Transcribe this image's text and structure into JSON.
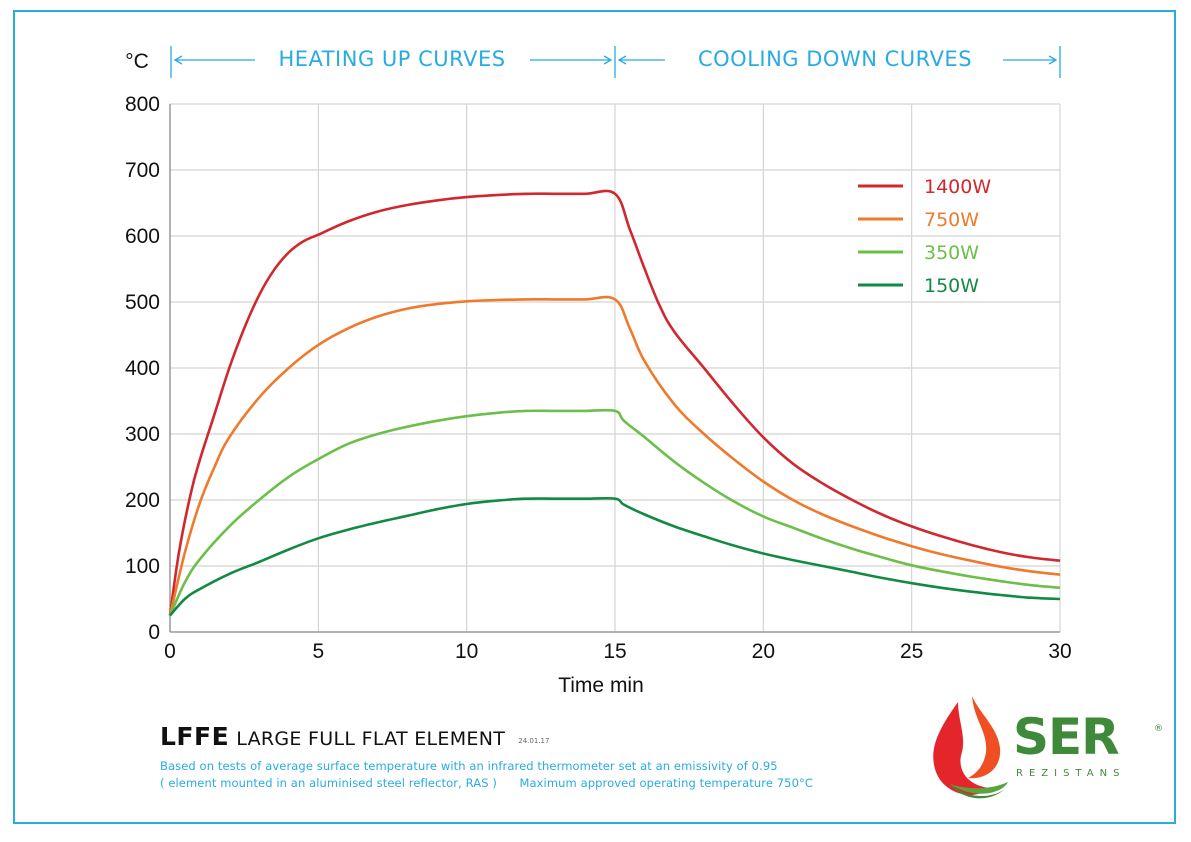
{
  "header": {
    "unit": "°C",
    "heating_label": "HEATING UP CURVES",
    "cooling_label": "COOLING DOWN CURVES"
  },
  "chart_data": {
    "type": "line",
    "xlabel": "Time min",
    "ylabel": "°C",
    "xlim": [
      0,
      30
    ],
    "ylim": [
      0,
      800
    ],
    "xticks": [
      0,
      5,
      10,
      15,
      20,
      25,
      30
    ],
    "yticks": [
      0,
      100,
      200,
      300,
      400,
      500,
      600,
      700,
      800
    ],
    "grid": true,
    "legend_position": "top-right",
    "series": [
      {
        "name": "1400W",
        "color": "#d0282e",
        "points": [
          [
            0,
            25
          ],
          [
            0.3,
            120
          ],
          [
            0.7,
            210
          ],
          [
            1,
            260
          ],
          [
            1.5,
            330
          ],
          [
            2,
            400
          ],
          [
            2.5,
            460
          ],
          [
            3,
            510
          ],
          [
            3.5,
            548
          ],
          [
            4,
            575
          ],
          [
            4.5,
            592
          ],
          [
            5,
            602
          ],
          [
            6,
            622
          ],
          [
            7,
            637
          ],
          [
            8,
            647
          ],
          [
            9,
            654
          ],
          [
            10,
            659
          ],
          [
            11,
            662
          ],
          [
            12,
            664
          ],
          [
            13,
            664
          ],
          [
            14,
            664
          ],
          [
            15,
            664
          ],
          [
            15.5,
            610
          ],
          [
            16,
            550
          ],
          [
            16.5,
            495
          ],
          [
            17,
            455
          ],
          [
            18,
            400
          ],
          [
            19,
            345
          ],
          [
            20,
            295
          ],
          [
            21,
            255
          ],
          [
            22,
            225
          ],
          [
            23,
            200
          ],
          [
            24,
            178
          ],
          [
            25,
            160
          ],
          [
            26,
            145
          ],
          [
            27,
            132
          ],
          [
            28,
            121
          ],
          [
            29,
            113
          ],
          [
            30,
            108
          ]
        ]
      },
      {
        "name": "750W",
        "color": "#ef7a2c",
        "points": [
          [
            0,
            25
          ],
          [
            0.5,
            120
          ],
          [
            1,
            195
          ],
          [
            1.5,
            250
          ],
          [
            2,
            295
          ],
          [
            3,
            355
          ],
          [
            4,
            400
          ],
          [
            5,
            435
          ],
          [
            6,
            460
          ],
          [
            7,
            478
          ],
          [
            8,
            490
          ],
          [
            9,
            497
          ],
          [
            10,
            501
          ],
          [
            11,
            503
          ],
          [
            12,
            504
          ],
          [
            13,
            504
          ],
          [
            14,
            504
          ],
          [
            15,
            504
          ],
          [
            15.5,
            460
          ],
          [
            16,
            410
          ],
          [
            17,
            345
          ],
          [
            18,
            300
          ],
          [
            19,
            262
          ],
          [
            20,
            228
          ],
          [
            21,
            200
          ],
          [
            22,
            178
          ],
          [
            23,
            160
          ],
          [
            24,
            144
          ],
          [
            25,
            130
          ],
          [
            26,
            118
          ],
          [
            27,
            108
          ],
          [
            28,
            99
          ],
          [
            29,
            92
          ],
          [
            30,
            87
          ]
        ]
      },
      {
        "name": "350W",
        "color": "#6cbf4a",
        "points": [
          [
            0,
            25
          ],
          [
            0.5,
            75
          ],
          [
            1,
            110
          ],
          [
            2,
            160
          ],
          [
            3,
            200
          ],
          [
            4,
            235
          ],
          [
            5,
            262
          ],
          [
            6,
            285
          ],
          [
            7,
            300
          ],
          [
            8,
            311
          ],
          [
            9,
            320
          ],
          [
            10,
            327
          ],
          [
            11,
            332
          ],
          [
            12,
            335
          ],
          [
            13,
            335
          ],
          [
            14,
            335
          ],
          [
            15,
            335
          ],
          [
            15.3,
            320
          ],
          [
            16,
            295
          ],
          [
            17,
            258
          ],
          [
            18,
            226
          ],
          [
            19,
            198
          ],
          [
            20,
            175
          ],
          [
            21,
            158
          ],
          [
            22,
            141
          ],
          [
            23,
            126
          ],
          [
            24,
            113
          ],
          [
            25,
            101
          ],
          [
            26,
            92
          ],
          [
            27,
            84
          ],
          [
            28,
            77
          ],
          [
            29,
            71
          ],
          [
            30,
            67
          ]
        ]
      },
      {
        "name": "150W",
        "color": "#138a43",
        "points": [
          [
            0,
            25
          ],
          [
            0.5,
            50
          ],
          [
            1,
            65
          ],
          [
            2,
            88
          ],
          [
            3,
            106
          ],
          [
            4,
            125
          ],
          [
            5,
            142
          ],
          [
            6,
            155
          ],
          [
            7,
            166
          ],
          [
            8,
            176
          ],
          [
            9,
            186
          ],
          [
            10,
            194
          ],
          [
            11,
            199
          ],
          [
            12,
            202
          ],
          [
            13,
            202
          ],
          [
            14,
            202
          ],
          [
            15,
            202
          ],
          [
            15.3,
            193
          ],
          [
            16,
            178
          ],
          [
            17,
            160
          ],
          [
            18,
            145
          ],
          [
            19,
            131
          ],
          [
            20,
            119
          ],
          [
            21,
            109
          ],
          [
            22,
            100
          ],
          [
            23,
            91
          ],
          [
            24,
            82
          ],
          [
            25,
            74
          ],
          [
            26,
            67
          ],
          [
            27,
            61
          ],
          [
            28,
            56
          ],
          [
            29,
            52
          ],
          [
            30,
            50
          ]
        ]
      }
    ]
  },
  "product": {
    "code": "LFFE",
    "name": "LARGE FULL FLAT ELEMENT",
    "date": "24.01.17",
    "note_line1": "Based on tests of average surface temperature with an infrared thermometer set at an emissivity of 0.95",
    "note_line2": "( element mounted in an aluminised steel reflector, RAS )      Maximum approved operating temperature 750°C"
  },
  "brand": {
    "name": "SER",
    "registered": "®",
    "subtitle": "REZISTANS",
    "logo_icon": "flame-icon"
  },
  "colors": {
    "accent": "#29abe2",
    "grid": "#d4d4d4",
    "brand_green": "#3f8a3a"
  }
}
